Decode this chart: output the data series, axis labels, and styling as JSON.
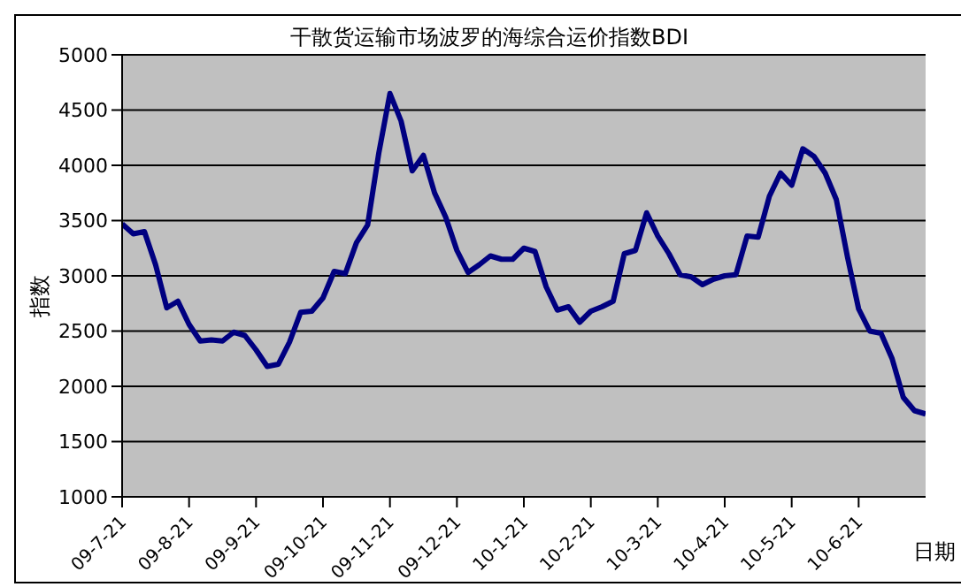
{
  "chart_data": {
    "type": "line",
    "title": "干散货运输市场波罗的海综合运价指数BDI",
    "xlabel": "日期",
    "ylabel": "指数",
    "categories": [
      "09-7-21",
      null,
      null,
      null,
      null,
      null,
      "09-8-21",
      null,
      null,
      null,
      null,
      null,
      "09-9-21",
      null,
      null,
      null,
      null,
      null,
      "09-10-21",
      null,
      null,
      null,
      null,
      null,
      "09-11-21",
      null,
      null,
      null,
      null,
      null,
      "09-12-21",
      null,
      null,
      null,
      null,
      null,
      "10-1-21",
      null,
      null,
      null,
      null,
      null,
      "10-2-21",
      null,
      null,
      null,
      null,
      null,
      "10-3-21",
      null,
      null,
      null,
      null,
      null,
      "10-4-21",
      null,
      null,
      null,
      null,
      null,
      "10-5-21",
      null,
      null,
      null,
      null,
      null,
      "10-6-21",
      null,
      null,
      null,
      null,
      null,
      null
    ],
    "series": [
      {
        "color": "#000080",
        "values": [
          3470,
          3380,
          3400,
          3100,
          2710,
          2770,
          2560,
          2410,
          2420,
          2410,
          2490,
          2460,
          2330,
          2180,
          2200,
          2400,
          2670,
          2680,
          2800,
          3040,
          3020,
          3300,
          3460,
          4110,
          4650,
          4400,
          3950,
          4090,
          3750,
          3530,
          3230,
          3030,
          3100,
          3180,
          3150,
          3150,
          3250,
          3220,
          2900,
          2690,
          2720,
          2580,
          2680,
          2720,
          2770,
          3200,
          3230,
          3570,
          3360,
          3200,
          3010,
          2990,
          2920,
          2970,
          3000,
          3010,
          3360,
          3350,
          3720,
          3930,
          3820,
          4150,
          4080,
          3930,
          3690,
          3170,
          2700,
          2500,
          2480,
          2250,
          1900,
          1780,
          1750
        ]
      }
    ],
    "ylim": [
      1000,
      5000
    ],
    "yticks": [
      1000,
      1500,
      2000,
      2500,
      3000,
      3500,
      4000,
      4500,
      5000
    ],
    "grid": "y",
    "legend": false,
    "marker": "none",
    "line_style": "solid"
  }
}
